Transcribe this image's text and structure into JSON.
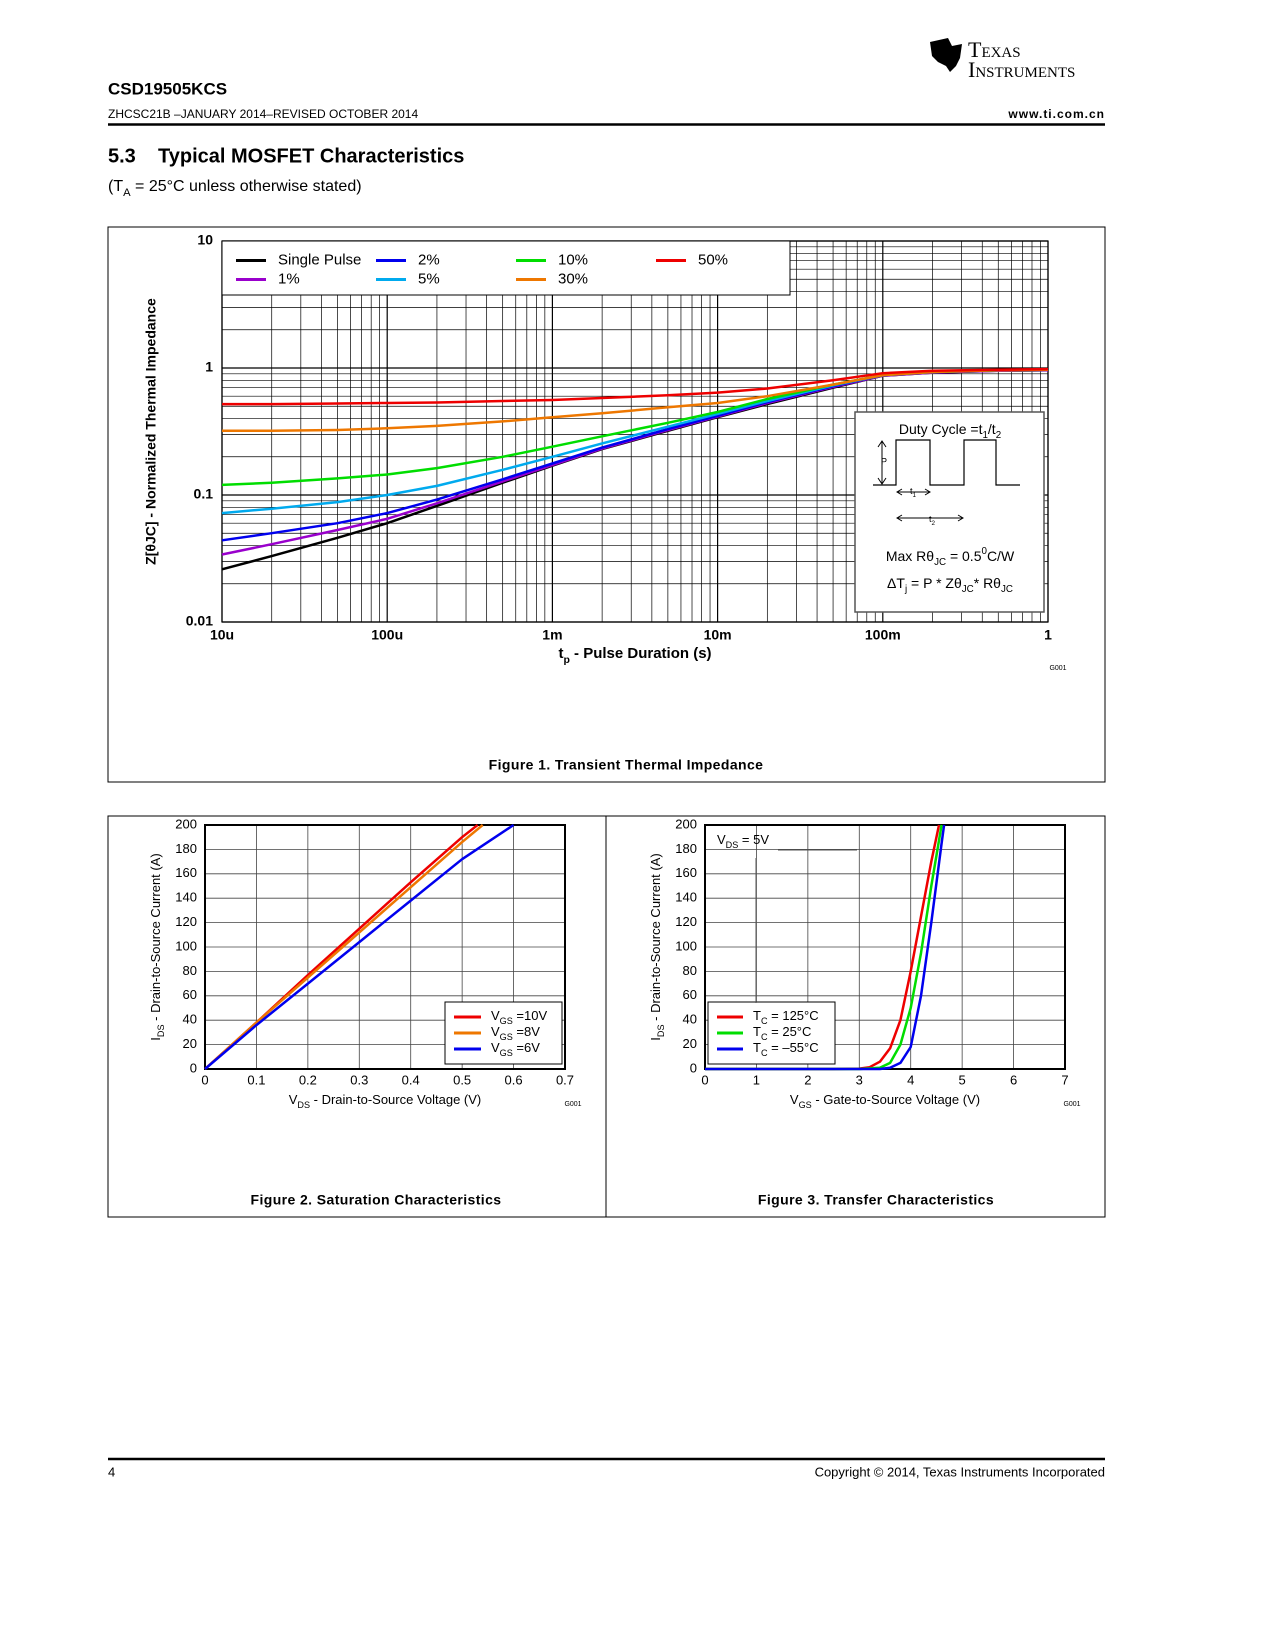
{
  "header": {
    "logo": [
      "Texas",
      "Instruments"
    ],
    "part": "CSD19505KCS",
    "doc": "ZHCSC21B –JANUARY 2014–REVISED OCTOBER 2014",
    "url": "www.ti.com.cn"
  },
  "section": {
    "number": "5.3",
    "title": "Typical MOSFET Characteristics",
    "note": [
      "(T",
      {
        "sub": "A"
      },
      " = 25°C unless otherwise stated)"
    ]
  },
  "inset": {
    "duty": [
      "Duty Cycle =t",
      {
        "sub": "1"
      },
      "/t",
      {
        "sub": "2"
      }
    ],
    "p": "P",
    "t1": [
      "t",
      {
        "sub": "1"
      }
    ],
    "t2": [
      "t",
      {
        "sub": "2"
      }
    ],
    "rth": [
      "Max Rθ",
      {
        "sub": "JC"
      },
      " = 0.5",
      {
        "sup": "0"
      },
      "C/W"
    ],
    "dt": [
      "ΔT",
      {
        "sub": "j"
      },
      " = P * Zθ",
      {
        "sub": "JC"
      },
      "* Rθ",
      {
        "sub": "JC"
      }
    ]
  },
  "footer": {
    "page": "4",
    "copyright": "Copyright © 2014, Texas Instruments Incorporated"
  },
  "chart_data": [
    {
      "type": "line",
      "caption": "Figure 1.  Transient Thermal Impedance",
      "note": "G001",
      "xlabel": [
        "t",
        {
          "sub": "p"
        },
        " - Pulse Duration (s)"
      ],
      "ylabel": "Z[θJC] - Normalized Thermal Impedance",
      "xscale": "log",
      "yscale": "log",
      "xlim": [
        1e-05,
        1
      ],
      "ylim": [
        0.01,
        10
      ],
      "xticks": [
        {
          "value": 1e-05,
          "label": "10u"
        },
        {
          "value": 0.0001,
          "label": "100u"
        },
        {
          "value": 0.001,
          "label": "1m"
        },
        {
          "value": 0.01,
          "label": "10m"
        },
        {
          "value": 0.1,
          "label": "100m"
        },
        1
      ],
      "yticks": [
        0.01,
        0.1,
        1,
        10
      ],
      "grid": true,
      "legend": "upper left",
      "legend_columns": 4,
      "x": [
        1e-05,
        2e-05,
        5e-05,
        0.0001,
        0.0002,
        0.0005,
        0.001,
        0.002,
        0.005,
        0.01,
        0.02,
        0.05,
        0.1,
        0.2,
        0.5,
        1
      ],
      "series": [
        {
          "name": "Single Pulse",
          "color": "#000000",
          "values": [
            0.026,
            0.033,
            0.046,
            0.06,
            0.082,
            0.125,
            0.17,
            0.23,
            0.32,
            0.41,
            0.52,
            0.7,
            0.87,
            0.92,
            0.95,
            0.96
          ]
        },
        {
          "name": "1%",
          "color": "#9900cc",
          "values": [
            0.034,
            0.041,
            0.053,
            0.065,
            0.086,
            0.128,
            0.172,
            0.232,
            0.325,
            0.415,
            0.53,
            0.71,
            0.87,
            0.92,
            0.95,
            0.96
          ]
        },
        {
          "name": "2%",
          "color": "#0000ee",
          "values": [
            0.044,
            0.05,
            0.06,
            0.072,
            0.092,
            0.133,
            0.177,
            0.236,
            0.33,
            0.42,
            0.54,
            0.72,
            0.88,
            0.93,
            0.96,
            0.97
          ]
        },
        {
          "name": "5%",
          "color": "#00aaee",
          "values": [
            0.072,
            0.078,
            0.088,
            0.1,
            0.118,
            0.158,
            0.2,
            0.255,
            0.345,
            0.435,
            0.55,
            0.73,
            0.88,
            0.93,
            0.96,
            0.97
          ]
        },
        {
          "name": "10%",
          "color": "#00dd00",
          "values": [
            0.12,
            0.125,
            0.135,
            0.145,
            0.163,
            0.2,
            0.24,
            0.29,
            0.37,
            0.45,
            0.57,
            0.74,
            0.88,
            0.93,
            0.96,
            0.97
          ]
        },
        {
          "name": "30%",
          "color": "#ee7700",
          "values": [
            0.32,
            0.32,
            0.325,
            0.335,
            0.35,
            0.38,
            0.41,
            0.44,
            0.49,
            0.53,
            0.6,
            0.74,
            0.88,
            0.93,
            0.96,
            0.97
          ]
        },
        {
          "name": "50%",
          "color": "#ee0000",
          "values": [
            0.52,
            0.52,
            0.525,
            0.53,
            0.535,
            0.55,
            0.56,
            0.58,
            0.61,
            0.64,
            0.69,
            0.8,
            0.91,
            0.95,
            0.97,
            0.98
          ]
        }
      ]
    },
    {
      "type": "line",
      "caption": "Figure 2. Saturation Characteristics",
      "note": "G001",
      "xlabel": [
        "V",
        {
          "sub": "DS"
        },
        " - Drain-to-Source Voltage (V)"
      ],
      "ylabel": [
        "I",
        {
          "sub": "DS"
        },
        " - Drain-to-Source Current (A)"
      ],
      "xlim": [
        0,
        0.7
      ],
      "ylim": [
        0,
        200
      ],
      "xticks": [
        0,
        0.1,
        0.2,
        0.3,
        0.4,
        0.5,
        0.6,
        0.7
      ],
      "yticks": [
        0,
        20,
        40,
        60,
        80,
        100,
        120,
        140,
        160,
        180,
        200
      ],
      "grid": true,
      "legend": "lower right",
      "series": [
        {
          "name": [
            "V",
            {
              "sub": "GS"
            },
            " =10V"
          ],
          "color": "#ee0000",
          "x": [
            0,
            0.1,
            0.2,
            0.3,
            0.4,
            0.5,
            0.53
          ],
          "values": [
            0,
            38,
            77,
            115,
            153,
            190,
            200
          ]
        },
        {
          "name": [
            "V",
            {
              "sub": "GS"
            },
            " =8V"
          ],
          "color": "#ee7700",
          "x": [
            0,
            0.1,
            0.2,
            0.3,
            0.4,
            0.5,
            0.54
          ],
          "values": [
            0,
            38,
            75,
            112,
            149,
            186,
            200
          ]
        },
        {
          "name": [
            "V",
            {
              "sub": "GS"
            },
            " =6V"
          ],
          "color": "#0000ee",
          "x": [
            0,
            0.1,
            0.2,
            0.3,
            0.4,
            0.5,
            0.6
          ],
          "values": [
            0,
            36,
            70,
            104,
            138,
            172,
            200
          ]
        }
      ]
    },
    {
      "type": "line",
      "caption": "Figure 3. Transfer Characteristics",
      "note": "G001",
      "annotation": [
        "V",
        {
          "sub": "DS"
        },
        " = 5V"
      ],
      "xlabel": [
        "V",
        {
          "sub": "GS"
        },
        " - Gate-to-Source Voltage (V)"
      ],
      "ylabel": [
        "I",
        {
          "sub": "DS"
        },
        " - Drain-to-Source Current (A)"
      ],
      "xlim": [
        0,
        7
      ],
      "ylim": [
        0,
        200
      ],
      "xticks": [
        0,
        1,
        2,
        3,
        4,
        5,
        6,
        7
      ],
      "yticks": [
        0,
        20,
        40,
        60,
        80,
        100,
        120,
        140,
        160,
        180,
        200
      ],
      "grid": true,
      "legend": "lower left",
      "series": [
        {
          "name": [
            "T",
            {
              "sub": "C"
            },
            " = 125°C"
          ],
          "color": "#ee0000",
          "x": [
            0,
            2.5,
            3,
            3.2,
            3.4,
            3.6,
            3.8,
            4,
            4.2,
            4.4,
            4.55
          ],
          "values": [
            0,
            0,
            0.3,
            1.5,
            6,
            17,
            40,
            80,
            125,
            170,
            200
          ]
        },
        {
          "name": [
            "T",
            {
              "sub": "C"
            },
            " = 25°C"
          ],
          "color": "#00dd00",
          "x": [
            0,
            3,
            3.4,
            3.6,
            3.8,
            4,
            4.2,
            4.4,
            4.6
          ],
          "values": [
            0,
            0,
            1,
            5,
            20,
            50,
            95,
            150,
            200
          ]
        },
        {
          "name": [
            "T",
            {
              "sub": "C"
            },
            " = –55°C"
          ],
          "color": "#0000ee",
          "x": [
            0,
            3.4,
            3.6,
            3.8,
            4,
            4.2,
            4.4,
            4.6,
            4.65
          ],
          "values": [
            0,
            0,
            1,
            5,
            18,
            60,
            120,
            185,
            200
          ]
        }
      ]
    }
  ]
}
